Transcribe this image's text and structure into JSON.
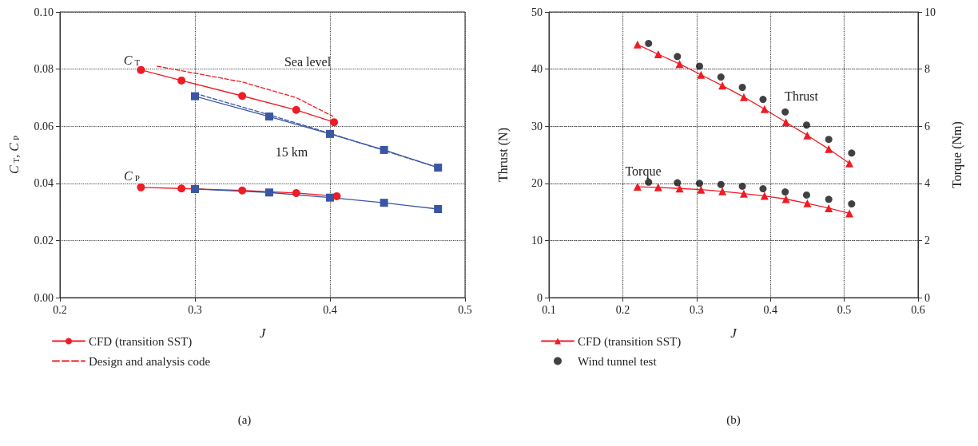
{
  "chart_data": [
    {
      "type": "line",
      "xlabel": "J",
      "ylabel": "C$_{T}$, C$_{P}$",
      "xlim": [
        0.2,
        0.5
      ],
      "xticks": [
        0.2,
        0.3,
        0.4,
        0.5
      ],
      "ylim": [
        0,
        0.1
      ],
      "yticks": [
        {
          "value": 0,
          "label": "0.00"
        },
        0.02,
        0.04,
        0.06,
        0.08,
        {
          "value": 0.1,
          "label": "0.10"
        }
      ],
      "grid": true,
      "legend": "bottom",
      "series": [
        {
          "name": "CFD (transition SST)",
          "color": "#ee1c25",
          "marker": "circle",
          "line_style": "solid",
          "x": [
            0.26,
            0.29,
            0.335,
            0.375,
            0.403
          ],
          "values": [
            0.0797,
            0.076,
            0.0706,
            0.0657,
            0.0614
          ]
        },
        {
          "name": "Design and analysis code",
          "color": "#ee1c25",
          "marker": "none",
          "line_style": "dashed",
          "x": [
            0.272,
            0.335,
            0.375,
            0.402
          ],
          "values": [
            0.081,
            0.0755,
            0.07,
            0.0635
          ]
        },
        {
          "color": "#ee1c25",
          "marker": "circle",
          "line_style": "solid",
          "x": [
            0.26,
            0.29,
            0.335,
            0.375,
            0.405
          ],
          "values": [
            0.0386,
            0.0382,
            0.0375,
            0.0366,
            0.0355
          ]
        },
        {
          "color": "#3a55a4",
          "marker": "square",
          "line_style": "solid",
          "x": [
            0.3,
            0.355,
            0.4,
            0.44,
            0.48
          ],
          "values": [
            0.0705,
            0.0634,
            0.0573,
            0.0517,
            0.0455
          ]
        },
        {
          "color": "#3a55a4",
          "marker": "none",
          "line_style": "dashed",
          "x": [
            0.3,
            0.355,
            0.4,
            0.48
          ],
          "values": [
            0.0715,
            0.064,
            0.0575,
            0.0455
          ]
        },
        {
          "color": "#3a55a4",
          "marker": "square",
          "line_style": "solid",
          "x": [
            0.3,
            0.355,
            0.4,
            0.44,
            0.48
          ],
          "values": [
            0.038,
            0.0368,
            0.035,
            0.0332,
            0.031
          ]
        }
      ],
      "annotations": [
        "C$_{T}$",
        "Sea level",
        "15 km",
        "C$_{P}$",
        "(a)"
      ]
    },
    {
      "type": "line",
      "xlabel": "J",
      "ylabel": "Thrust (N)",
      "y2label": "Torque (Nm)",
      "xlim": [
        0.1,
        0.6
      ],
      "xticks": [
        0.1,
        0.2,
        0.3,
        0.4,
        0.5,
        0.6
      ],
      "ylim": [
        0,
        50
      ],
      "yticks": [
        0,
        10,
        20,
        30,
        40,
        50
      ],
      "y2lim": [
        0,
        10
      ],
      "y2ticks": [
        0,
        2,
        4,
        6,
        8,
        10
      ],
      "grid": true,
      "legend": "bottom",
      "series": [
        {
          "name": "CFD (transition SST)",
          "color": "#ee1c25",
          "marker": "triangle",
          "line_style": "solid",
          "x": [
            0.22,
            0.248,
            0.277,
            0.306,
            0.335,
            0.364,
            0.392,
            0.421,
            0.45,
            0.479,
            0.507
          ],
          "values": [
            44.3,
            42.6,
            40.9,
            39.0,
            37.1,
            35.1,
            33.0,
            30.7,
            28.4,
            26.0,
            23.5
          ]
        },
        {
          "name": "Wind tunnel test",
          "type": "scatter",
          "color": "#111111",
          "marker": "circle",
          "x": [
            0.235,
            0.274,
            0.304,
            0.333,
            0.362,
            0.39,
            0.42,
            0.449,
            0.479,
            0.51
          ],
          "values": [
            44.5,
            42.2,
            40.5,
            38.6,
            36.8,
            34.7,
            32.5,
            30.2,
            27.7,
            25.3
          ]
        },
        {
          "color": "#ee1c25",
          "marker": "triangle",
          "line_style": "solid",
          "axis": "y2",
          "x": [
            0.22,
            0.248,
            0.277,
            0.306,
            0.335,
            0.364,
            0.392,
            0.421,
            0.45,
            0.479,
            0.507
          ],
          "values": [
            3.88,
            3.86,
            3.82,
            3.78,
            3.72,
            3.64,
            3.56,
            3.45,
            3.3,
            3.13,
            2.95
          ]
        },
        {
          "type": "scatter",
          "color": "#111111",
          "marker": "circle",
          "axis": "y2",
          "x": [
            0.235,
            0.274,
            0.304,
            0.333,
            0.362,
            0.39,
            0.42,
            0.449,
            0.479,
            0.51
          ],
          "values": [
            4.04,
            4.02,
            4.0,
            3.96,
            3.9,
            3.81,
            3.7,
            3.59,
            3.44,
            3.28
          ]
        }
      ],
      "annotations": [
        "Thrust",
        "Torque",
        "(b)"
      ]
    }
  ]
}
